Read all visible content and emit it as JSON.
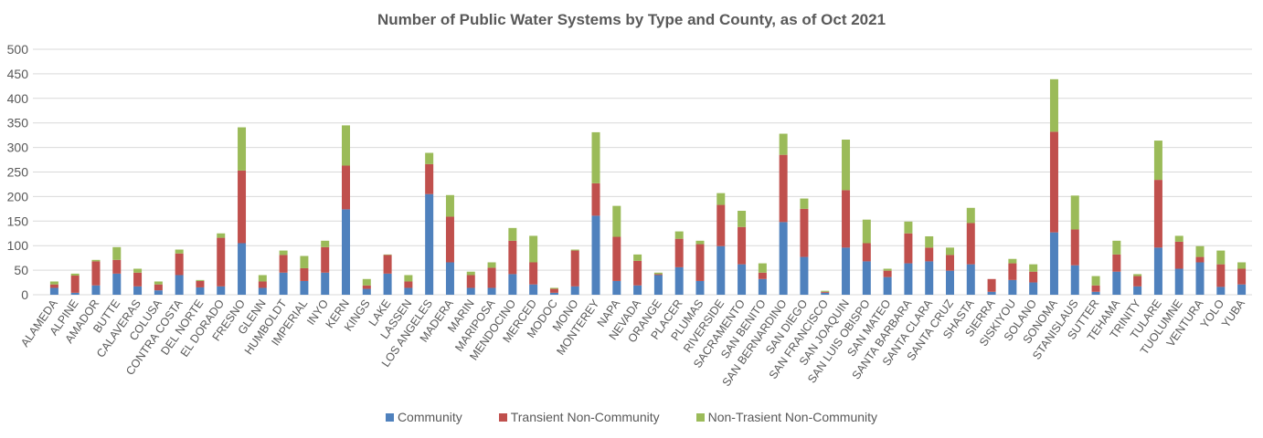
{
  "chart_data": {
    "type": "bar",
    "stacked": true,
    "title": "Number of Public Water Systems by Type and County, as of Oct 2021",
    "xlabel": "",
    "ylabel": "",
    "ylim": [
      0,
      500
    ],
    "yticks": [
      0,
      50,
      100,
      150,
      200,
      250,
      300,
      350,
      400,
      450,
      500
    ],
    "grid": true,
    "legend_position": "bottom",
    "categories": [
      "ALAMEDA",
      "ALPINE",
      "AMADOR",
      "BUTTE",
      "CALAVERAS",
      "COLUSA",
      "CONTRA COSTA",
      "DEL NORTE",
      "EL DORADO",
      "FRESNO",
      "GLENN",
      "HUMBOLDT",
      "IMPERIAL",
      "INYO",
      "KERN",
      "KINGS",
      "LAKE",
      "LASSEN",
      "LOS ANGELES",
      "MADERA",
      "MARIN",
      "MARIPOSA",
      "MENDOCINO",
      "MERCED",
      "MODOC",
      "MONO",
      "MONTEREY",
      "NAPA",
      "NEVADA",
      "ORANGE",
      "PLACER",
      "PLUMAS",
      "RIVERSIDE",
      "SACRAMENTO",
      "SAN BENITO",
      "SAN BERNARDINO",
      "SAN DIEGO",
      "SAN FRANCISCO",
      "SAN JOAQUIN",
      "SAN LUIS OBISPO",
      "SAN MATEO",
      "SANTA BARBARA",
      "SANTA CLARA",
      "SANTA CRUZ",
      "SHASTA",
      "SIERRA",
      "SISKIYOU",
      "SOLANO",
      "SONOMA",
      "STANISLAUS",
      "SUTTER",
      "TEHAMA",
      "TRINITY",
      "TULARE",
      "TUOLUMNE",
      "VENTURA",
      "YOLO",
      "YUBA"
    ],
    "series": [
      {
        "name": "Community",
        "color": "#4F81BD",
        "values": [
          14,
          4,
          19,
          43,
          17,
          9,
          40,
          15,
          17,
          105,
          14,
          45,
          28,
          45,
          174,
          12,
          43,
          14,
          205,
          66,
          14,
          14,
          42,
          21,
          4,
          17,
          161,
          28,
          19,
          40,
          56,
          28,
          99,
          62,
          32,
          148,
          77,
          4,
          96,
          68,
          36,
          64,
          68,
          49,
          62,
          6,
          30,
          25,
          127,
          60,
          6,
          47,
          17,
          96,
          53,
          66,
          16,
          21
        ]
      },
      {
        "name": "Transient Non-Community",
        "color": "#C0504D",
        "values": [
          7,
          35,
          49,
          28,
          28,
          12,
          44,
          13,
          99,
          148,
          13,
          36,
          26,
          52,
          89,
          7,
          38,
          13,
          61,
          93,
          26,
          41,
          68,
          45,
          8,
          73,
          66,
          90,
          50,
          2,
          58,
          75,
          84,
          76,
          13,
          137,
          98,
          2,
          117,
          37,
          13,
          61,
          28,
          32,
          84,
          26,
          34,
          22,
          205,
          73,
          13,
          35,
          21,
          138,
          55,
          11,
          46,
          32
        ]
      },
      {
        "name": "Non-Trasient Non-Community",
        "color": "#9BBB59",
        "values": [
          6,
          4,
          3,
          26,
          8,
          6,
          8,
          2,
          9,
          88,
          13,
          9,
          25,
          13,
          82,
          13,
          1,
          13,
          23,
          44,
          7,
          11,
          26,
          54,
          2,
          2,
          104,
          63,
          13,
          3,
          15,
          7,
          24,
          33,
          19,
          43,
          21,
          2,
          103,
          48,
          4,
          24,
          23,
          15,
          31,
          0,
          9,
          15,
          107,
          69,
          19,
          28,
          4,
          80,
          12,
          22,
          28,
          13
        ]
      }
    ]
  }
}
